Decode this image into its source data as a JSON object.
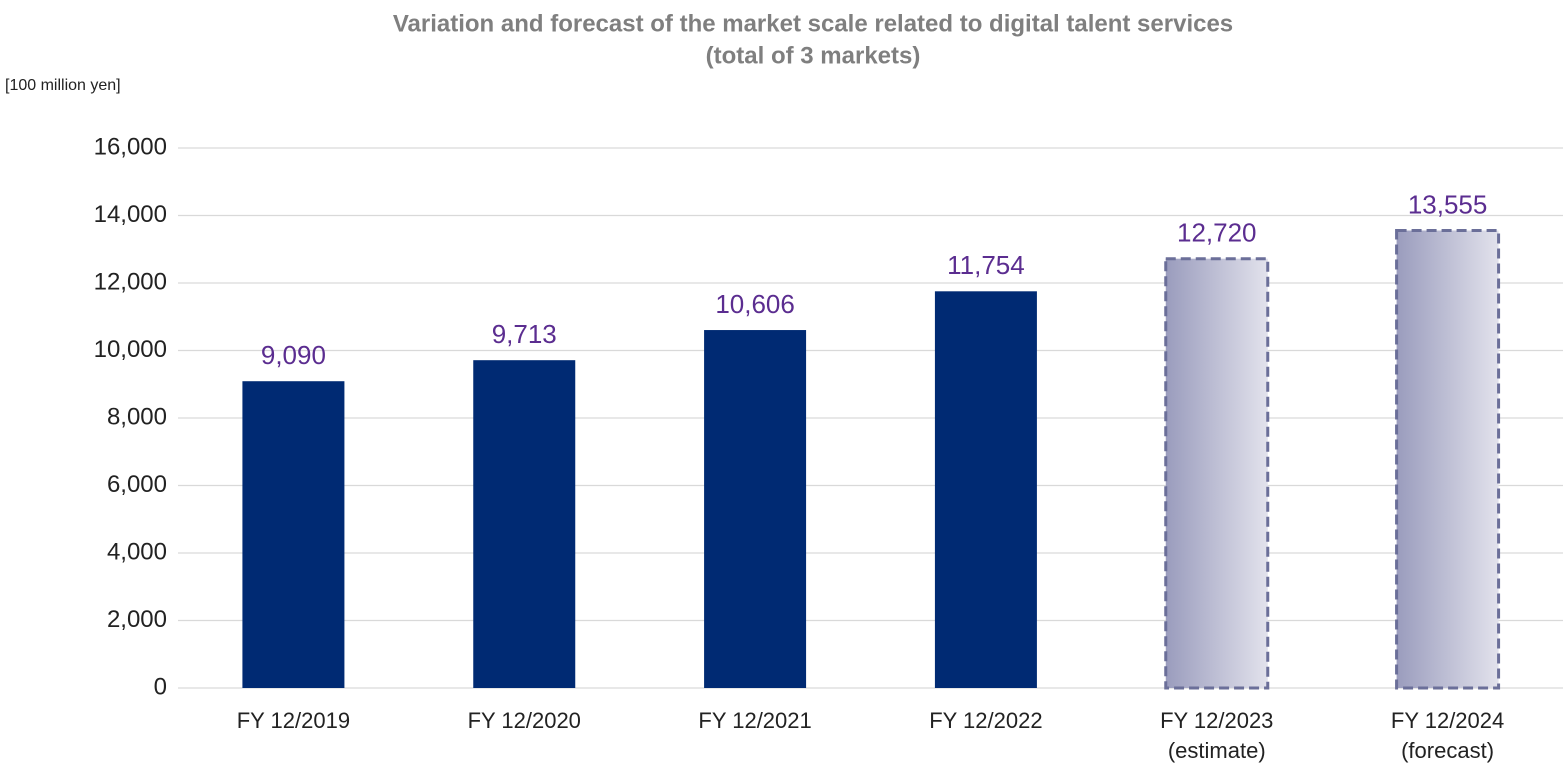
{
  "chart_data": {
    "type": "bar",
    "title": "Variation and forecast of the market scale related to digital talent services",
    "subtitle": "(total of 3 markets)",
    "y_label": "[100 million yen]",
    "categories": [
      "FY 12/2019",
      "FY 12/2020",
      "FY 12/2021",
      "FY 12/2022",
      "FY 12/2023\n(estimate)",
      "FY 12/2024\n(forecast)"
    ],
    "values": [
      9090,
      9713,
      10606,
      11754,
      12720,
      13555
    ],
    "value_labels": [
      "9,090",
      "9,713",
      "10,606",
      "11,754",
      "12,720",
      "13,555"
    ],
    "color": "#002a73",
    "projected_color": "#6b6f99",
    "bar_style": [
      "solid",
      "solid",
      "solid",
      "solid",
      "dashed",
      "dashed"
    ],
    "label_color": "#5b2d90",
    "ylim": [
      0,
      16000
    ],
    "yticks": [
      0,
      {
        "value": 2000,
        "label": "2,000"
      },
      {
        "value": 4000,
        "label": "4,000"
      },
      {
        "value": 6000,
        "label": "6,000"
      },
      {
        "value": 8000,
        "label": "8,000"
      },
      {
        "value": 10000,
        "label": "10,000"
      },
      {
        "value": 12000,
        "label": "12,000"
      },
      {
        "value": 14000,
        "label": "14,000"
      },
      {
        "value": 16000,
        "label": "16,000"
      }
    ],
    "grid": true
  }
}
